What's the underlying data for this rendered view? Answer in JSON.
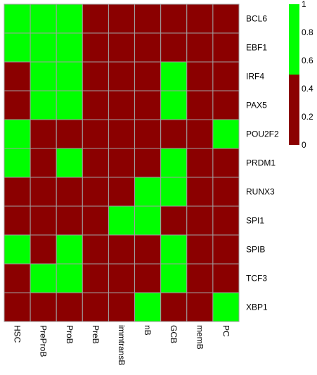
{
  "chart_data": {
    "type": "heatmap",
    "columns": [
      "HSC",
      "PreProB",
      "ProB",
      "PreB",
      "immtransB",
      "nB",
      "GCB",
      "memB",
      "PC"
    ],
    "rows": [
      "BCL6",
      "EBF1",
      "IRF4",
      "PAX5",
      "POU2F2",
      "PRDM1",
      "RUNX3",
      "SPI1",
      "SPIB",
      "TCF3",
      "XBP1"
    ],
    "values": [
      [
        1,
        1,
        1,
        0,
        0,
        0,
        0,
        0,
        0
      ],
      [
        1,
        1,
        1,
        0,
        0,
        0,
        0,
        0,
        0
      ],
      [
        0,
        1,
        1,
        0,
        0,
        0,
        1,
        0,
        0
      ],
      [
        0,
        1,
        1,
        0,
        0,
        0,
        1,
        0,
        0
      ],
      [
        1,
        0,
        0,
        0,
        0,
        0,
        0,
        0,
        1
      ],
      [
        1,
        0,
        1,
        0,
        0,
        0,
        1,
        0,
        0
      ],
      [
        0,
        0,
        0,
        0,
        0,
        1,
        1,
        0,
        0
      ],
      [
        0,
        0,
        0,
        0,
        1,
        1,
        0,
        0,
        0
      ],
      [
        1,
        0,
        1,
        0,
        0,
        0,
        1,
        0,
        0
      ],
      [
        0,
        1,
        1,
        0,
        0,
        0,
        1,
        0,
        0
      ],
      [
        0,
        0,
        0,
        0,
        0,
        1,
        0,
        0,
        1
      ]
    ],
    "colors": {
      "low": "#8b0000",
      "high": "#00ff00",
      "grid": "#a0a0a0"
    },
    "colorbar": {
      "threshold": 0.5,
      "ticks": [
        "0",
        "0.2",
        "0.4",
        "0.6",
        "0.8",
        "1"
      ],
      "tick_values": [
        0,
        0.2,
        0.4,
        0.6,
        0.8,
        1
      ],
      "range": [
        0,
        1
      ]
    },
    "grid": true,
    "legend_position": "top-right"
  }
}
